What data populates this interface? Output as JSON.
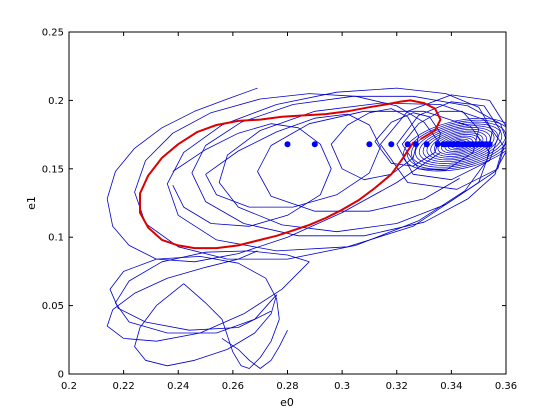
{
  "chart_data": {
    "type": "line",
    "xlabel": "e0",
    "ylabel": "e1",
    "xlim": [
      0.2,
      0.36
    ],
    "ylim": [
      0,
      0.25
    ],
    "x_ticks": [
      0.2,
      0.22,
      0.24,
      0.26,
      0.28,
      0.3,
      0.32,
      0.34,
      0.36
    ],
    "x_tick_labels": [
      "0.2",
      "0.22",
      "0.24",
      "0.26",
      "0.28",
      "0.3",
      "0.32",
      "0.34",
      "0.36"
    ],
    "y_ticks": [
      0,
      0.05,
      0.1,
      0.15,
      0.2,
      0.25
    ],
    "y_tick_labels": [
      "0",
      "0.05",
      "0.1",
      "0.15",
      "0.2",
      "0.25"
    ],
    "grid": false,
    "colors": {
      "trajectories": "#0000cc",
      "highlight": "#dd0000",
      "points": "#0000ff",
      "axes": "#000000"
    },
    "series": [
      {
        "style": "red-curve",
        "x": [
          0.326,
          0.322,
          0.318,
          0.312,
          0.306,
          0.3,
          0.294,
          0.288,
          0.282,
          0.276,
          0.27,
          0.262,
          0.254,
          0.246,
          0.24,
          0.234,
          0.229,
          0.226,
          0.226,
          0.229,
          0.234,
          0.24,
          0.247,
          0.254,
          0.262,
          0.27,
          0.278,
          0.286,
          0.294,
          0.302,
          0.31,
          0.316,
          0.321,
          0.325
        ],
        "y": [
          0.169,
          0.157,
          0.146,
          0.136,
          0.127,
          0.12,
          0.114,
          0.109,
          0.105,
          0.101,
          0.098,
          0.094,
          0.092,
          0.092,
          0.094,
          0.098,
          0.107,
          0.118,
          0.132,
          0.145,
          0.158,
          0.168,
          0.177,
          0.182,
          0.185,
          0.186,
          0.188,
          0.189,
          0.19,
          0.192,
          0.195,
          0.197,
          0.199,
          0.2
        ]
      },
      {
        "style": "red-curve",
        "x": [
          0.325,
          0.33,
          0.334,
          0.336,
          0.334,
          0.329
        ],
        "y": [
          0.2,
          0.198,
          0.194,
          0.186,
          0.178,
          0.172
        ]
      }
    ],
    "trajectories": [
      {
        "x": [
          0.269,
          0.258,
          0.246,
          0.234,
          0.224,
          0.217,
          0.214,
          0.216,
          0.222,
          0.232,
          0.246,
          0.262,
          0.28,
          0.3,
          0.32,
          0.336
        ],
        "y": [
          0.209,
          0.201,
          0.192,
          0.18,
          0.165,
          0.148,
          0.128,
          0.108,
          0.094,
          0.084,
          0.082,
          0.088,
          0.1,
          0.118,
          0.14,
          0.162
        ]
      },
      {
        "x": [
          0.336,
          0.33,
          0.32,
          0.305,
          0.288,
          0.27,
          0.252,
          0.238,
          0.228,
          0.224,
          0.228,
          0.24,
          0.258,
          0.28,
          0.305,
          0.328,
          0.345,
          0.353
        ],
        "y": [
          0.168,
          0.184,
          0.196,
          0.203,
          0.205,
          0.201,
          0.191,
          0.176,
          0.156,
          0.133,
          0.11,
          0.093,
          0.084,
          0.084,
          0.094,
          0.112,
          0.134,
          0.156
        ]
      },
      {
        "x": [
          0.353,
          0.355,
          0.35,
          0.338,
          0.32,
          0.298,
          0.276,
          0.256,
          0.242,
          0.236,
          0.24,
          0.254,
          0.276,
          0.302,
          0.326,
          0.344
        ],
        "y": [
          0.156,
          0.178,
          0.195,
          0.205,
          0.209,
          0.206,
          0.197,
          0.182,
          0.162,
          0.139,
          0.116,
          0.098,
          0.09,
          0.093,
          0.108,
          0.132
        ]
      },
      {
        "x": [
          0.344,
          0.356,
          0.361,
          0.358,
          0.346,
          0.326,
          0.304,
          0.282,
          0.263,
          0.25,
          0.245,
          0.25,
          0.264,
          0.284,
          0.308,
          0.33,
          0.346
        ],
        "y": [
          0.132,
          0.148,
          0.166,
          0.183,
          0.196,
          0.203,
          0.203,
          0.197,
          0.184,
          0.167,
          0.147,
          0.126,
          0.11,
          0.101,
          0.101,
          0.111,
          0.128
        ]
      },
      {
        "x": [
          0.346,
          0.356,
          0.359,
          0.352,
          0.336,
          0.314,
          0.29,
          0.27,
          0.258,
          0.255,
          0.262,
          0.278,
          0.298,
          0.32,
          0.338
        ],
        "y": [
          0.128,
          0.146,
          0.167,
          0.186,
          0.197,
          0.198,
          0.192,
          0.178,
          0.16,
          0.14,
          0.122,
          0.109,
          0.104,
          0.11,
          0.124
        ]
      },
      {
        "x": [
          0.338,
          0.35,
          0.354,
          0.347,
          0.33,
          0.308,
          0.288,
          0.274,
          0.269,
          0.274,
          0.29,
          0.31,
          0.33,
          0.343
        ],
        "y": [
          0.124,
          0.14,
          0.162,
          0.181,
          0.192,
          0.192,
          0.183,
          0.167,
          0.148,
          0.13,
          0.119,
          0.119,
          0.128,
          0.143
        ]
      },
      {
        "x": [
          0.269,
          0.262,
          0.25,
          0.236,
          0.224,
          0.216,
          0.214,
          0.22,
          0.232,
          0.248,
          0.264,
          0.278,
          0.288
        ],
        "y": [
          0.09,
          0.084,
          0.078,
          0.07,
          0.059,
          0.047,
          0.035,
          0.026,
          0.024,
          0.03,
          0.044,
          0.062,
          0.082
        ]
      },
      {
        "x": [
          0.288,
          0.28,
          0.266,
          0.25,
          0.234,
          0.222,
          0.217,
          0.222,
          0.236,
          0.254,
          0.268,
          0.276
        ],
        "y": [
          0.082,
          0.087,
          0.09,
          0.089,
          0.082,
          0.068,
          0.052,
          0.038,
          0.03,
          0.03,
          0.04,
          0.058
        ]
      },
      {
        "x": [
          0.276,
          0.274,
          0.268,
          0.258,
          0.246,
          0.236,
          0.228,
          0.224,
          0.226,
          0.232,
          0.242
        ],
        "y": [
          0.058,
          0.044,
          0.03,
          0.018,
          0.01,
          0.006,
          0.01,
          0.02,
          0.034,
          0.05,
          0.066
        ]
      },
      {
        "x": [
          0.242,
          0.25,
          0.256,
          0.258,
          0.26,
          0.263,
          0.266,
          0.27,
          0.274,
          0.277
        ],
        "y": [
          0.066,
          0.052,
          0.04,
          0.028,
          0.016,
          0.006,
          0.004,
          0.012,
          0.024,
          0.04
        ]
      },
      {
        "x": [
          0.277,
          0.276,
          0.272,
          0.262,
          0.248,
          0.232,
          0.22,
          0.215,
          0.218,
          0.228,
          0.244,
          0.262,
          0.274
        ],
        "y": [
          0.04,
          0.055,
          0.07,
          0.081,
          0.086,
          0.084,
          0.075,
          0.062,
          0.048,
          0.038,
          0.032,
          0.034,
          0.046
        ]
      },
      {
        "x": [
          0.256,
          0.262,
          0.266,
          0.27,
          0.274,
          0.277,
          0.28
        ],
        "y": [
          0.026,
          0.018,
          0.01,
          0.004,
          0.01,
          0.02,
          0.032
        ]
      },
      {
        "x": [
          0.238,
          0.25,
          0.262,
          0.274,
          0.284,
          0.292,
          0.296,
          0.292,
          0.28,
          0.266,
          0.252,
          0.242,
          0.238
        ],
        "y": [
          0.148,
          0.164,
          0.176,
          0.183,
          0.18,
          0.168,
          0.15,
          0.131,
          0.116,
          0.108,
          0.11,
          0.122,
          0.138
        ]
      },
      {
        "x": [
          0.25,
          0.262,
          0.276,
          0.29,
          0.302,
          0.31,
          0.314,
          0.31,
          0.298,
          0.282,
          0.266,
          0.254,
          0.25
        ],
        "y": [
          0.146,
          0.163,
          0.177,
          0.187,
          0.19,
          0.182,
          0.166,
          0.147,
          0.131,
          0.122,
          0.122,
          0.131,
          0.146
        ]
      },
      {
        "x": [
          0.296,
          0.302,
          0.31,
          0.318,
          0.324,
          0.328,
          0.326,
          0.318,
          0.308,
          0.3,
          0.296
        ],
        "y": [
          0.168,
          0.182,
          0.191,
          0.194,
          0.188,
          0.174,
          0.158,
          0.146,
          0.142,
          0.15,
          0.168
        ]
      },
      {
        "x": [
          0.312,
          0.318,
          0.326,
          0.332,
          0.336,
          0.334,
          0.326,
          0.318,
          0.312
        ],
        "y": [
          0.17,
          0.184,
          0.191,
          0.188,
          0.176,
          0.162,
          0.152,
          0.154,
          0.17
        ]
      },
      {
        "x": [
          0.322,
          0.328,
          0.336,
          0.344,
          0.35,
          0.348,
          0.338,
          0.328,
          0.322
        ],
        "y": [
          0.168,
          0.183,
          0.192,
          0.192,
          0.179,
          0.162,
          0.149,
          0.15,
          0.168
        ]
      },
      {
        "x": [
          0.32,
          0.328,
          0.34,
          0.352,
          0.358,
          0.354,
          0.34,
          0.326,
          0.32
        ],
        "y": [
          0.168,
          0.189,
          0.199,
          0.196,
          0.178,
          0.156,
          0.142,
          0.146,
          0.168
        ]
      },
      {
        "x": [
          0.314,
          0.324,
          0.34,
          0.354,
          0.361,
          0.357,
          0.342,
          0.324,
          0.314
        ],
        "y": [
          0.168,
          0.192,
          0.204,
          0.2,
          0.178,
          0.15,
          0.135,
          0.14,
          0.168
        ]
      }
    ],
    "spiral": {
      "center": [
        0.343,
        0.168
      ]
    },
    "points": {
      "x": [
        0.28,
        0.29,
        0.31,
        0.318,
        0.324,
        0.327,
        0.331,
        0.335,
        0.337,
        0.338,
        0.339,
        0.34,
        0.341,
        0.342,
        0.343,
        0.344,
        0.345,
        0.346,
        0.347,
        0.348,
        0.349,
        0.35,
        0.351,
        0.352,
        0.353,
        0.354
      ],
      "y": [
        0.168,
        0.168,
        0.168,
        0.168,
        0.168,
        0.168,
        0.168,
        0.168,
        0.168,
        0.168,
        0.168,
        0.168,
        0.168,
        0.168,
        0.168,
        0.168,
        0.168,
        0.168,
        0.168,
        0.168,
        0.168,
        0.168,
        0.168,
        0.168,
        0.168,
        0.168
      ]
    }
  }
}
